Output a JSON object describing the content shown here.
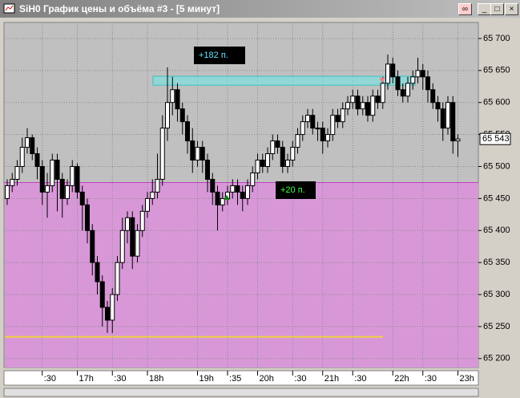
{
  "window": {
    "title": "SiH0 График цены и объёма #3 - [5 минут]"
  },
  "chart_data": {
    "type": "candlestick",
    "categories": [
      null,
      null,
      null,
      null,
      null,
      null,
      null,
      ":30",
      null,
      null,
      null,
      null,
      null,
      null,
      "17h",
      null,
      null,
      null,
      null,
      null,
      null,
      ":30",
      null,
      null,
      null,
      null,
      null,
      null,
      "18h",
      null,
      null,
      null,
      null,
      null,
      null,
      null,
      null,
      null,
      "19h",
      null,
      null,
      null,
      null,
      null,
      ":35",
      null,
      null,
      null,
      null,
      null,
      "20h",
      null,
      null,
      null,
      null,
      null,
      null,
      ":30",
      null,
      null,
      null,
      null,
      null,
      "21h",
      null,
      null,
      null,
      null,
      null,
      ":30",
      null,
      null,
      null,
      null,
      null,
      null,
      null,
      "22h",
      null,
      null,
      null,
      null,
      null,
      ":30",
      null,
      null,
      null,
      null,
      null,
      null,
      "23h"
    ],
    "open": [
      65450,
      65470,
      65480,
      65500,
      65530,
      65545,
      65520,
      65500,
      65460,
      65470,
      65510,
      65480,
      65450,
      65470,
      65500,
      65460,
      65440,
      65400,
      65350,
      65320,
      65280,
      65260,
      65300,
      65350,
      65400,
      65420,
      65360,
      65400,
      65430,
      65450,
      65460,
      65480,
      65560,
      65600,
      65620,
      65590,
      65570,
      65540,
      65510,
      65530,
      65510,
      65480,
      65460,
      65440,
      65450,
      65460,
      65470,
      65460,
      65450,
      65470,
      65490,
      65510,
      65500,
      65520,
      65540,
      65530,
      65500,
      65510,
      65530,
      65550,
      65570,
      65580,
      65560,
      65560,
      65540,
      65550,
      65580,
      65570,
      65590,
      65600,
      65610,
      65590,
      65600,
      65580,
      65610,
      65600,
      65630,
      65660,
      65640,
      65620,
      65610,
      65630,
      65640,
      65650,
      65640,
      65620,
      65600,
      65590,
      65560,
      65600,
      65540
    ],
    "high": [
      65480,
      65490,
      65510,
      65545,
      65560,
      65550,
      65530,
      65510,
      65490,
      65520,
      65520,
      65490,
      65480,
      65510,
      65505,
      65470,
      65450,
      65410,
      65360,
      65330,
      65290,
      65310,
      65360,
      65420,
      65430,
      65430,
      65410,
      65440,
      65460,
      65480,
      65520,
      65580,
      65655,
      65640,
      65630,
      65600,
      65580,
      65560,
      65540,
      65540,
      65520,
      65490,
      65470,
      65460,
      65470,
      65480,
      65480,
      65470,
      65480,
      65500,
      65520,
      65520,
      65530,
      65550,
      65550,
      65540,
      65520,
      65540,
      65560,
      65580,
      65590,
      65590,
      65570,
      65570,
      65560,
      65590,
      65590,
      65600,
      65610,
      65620,
      65620,
      65610,
      65610,
      65620,
      65620,
      65640,
      65675,
      65670,
      65650,
      65630,
      65640,
      65650,
      65670,
      65660,
      65650,
      65630,
      65610,
      65600,
      65610,
      65610,
      65550
    ],
    "low": [
      65440,
      65460,
      65470,
      65490,
      65520,
      65510,
      65480,
      65440,
      65420,
      65460,
      65430,
      65420,
      65440,
      65460,
      65450,
      65400,
      65380,
      65330,
      65300,
      65250,
      65240,
      65240,
      65290,
      65340,
      65380,
      65340,
      65350,
      65390,
      65420,
      65440,
      65450,
      65470,
      65540,
      65580,
      65570,
      65550,
      65520,
      65490,
      65500,
      65490,
      65460,
      65440,
      65400,
      65430,
      65440,
      65450,
      65440,
      65430,
      65440,
      65460,
      65480,
      65490,
      65490,
      65510,
      65520,
      65490,
      65490,
      65500,
      65520,
      65540,
      65560,
      65550,
      65540,
      65520,
      65530,
      65540,
      65560,
      65560,
      65580,
      65590,
      65580,
      65580,
      65570,
      65570,
      65590,
      65590,
      65620,
      65630,
      65610,
      65600,
      65600,
      65620,
      65630,
      65620,
      65600,
      65590,
      65570,
      65540,
      65550,
      65520,
      65515
    ],
    "close": [
      65470,
      65480,
      65500,
      65530,
      65545,
      65520,
      65500,
      65460,
      65470,
      65510,
      65480,
      65450,
      65470,
      65500,
      65460,
      65440,
      65400,
      65350,
      65320,
      65280,
      65260,
      65300,
      65350,
      65400,
      65420,
      65360,
      65400,
      65430,
      65450,
      65460,
      65480,
      65560,
      65600,
      65620,
      65590,
      65570,
      65540,
      65510,
      65530,
      65510,
      65480,
      65460,
      65440,
      65450,
      65460,
      65470,
      65460,
      65450,
      65470,
      65490,
      65510,
      65500,
      65520,
      65540,
      65530,
      65500,
      65510,
      65530,
      65550,
      65570,
      65580,
      65560,
      65560,
      65540,
      65550,
      65580,
      65570,
      65590,
      65600,
      65610,
      65590,
      65600,
      65580,
      65610,
      65600,
      65630,
      65660,
      65640,
      65620,
      65610,
      65630,
      65640,
      65650,
      65640,
      65620,
      65600,
      65590,
      65560,
      65600,
      65540,
      65543
    ],
    "ylim": [
      65186,
      65725
    ],
    "yticks": [
      {
        "value": 65200,
        "label": "65 200"
      },
      {
        "value": 65250,
        "label": "65 250"
      },
      {
        "value": 65300,
        "label": "65 300"
      },
      {
        "value": 65350,
        "label": "65 350"
      },
      {
        "value": 65400,
        "label": "65 400"
      },
      {
        "value": 65450,
        "label": "65 450"
      },
      {
        "value": 65500,
        "label": "65 500"
      },
      {
        "value": 65550,
        "label": "65 550"
      },
      {
        "value": 65600,
        "label": "65 600"
      },
      {
        "value": 65650,
        "label": "65 650"
      },
      {
        "value": 65700,
        "label": "65 700"
      }
    ],
    "current_price": {
      "value": 65543,
      "label": "65 543"
    },
    "zone": {
      "top": 65475,
      "color": "#d898d8"
    },
    "band": {
      "low": 65627,
      "high": 65641,
      "color": "#7fe0e0"
    },
    "level": {
      "value": 65234,
      "color": "#f0d040"
    },
    "up_color": "#ffffff",
    "down_color": "#000000",
    "annotations": [
      "+182 п.",
      "+20 п."
    ],
    "grid": true
  }
}
